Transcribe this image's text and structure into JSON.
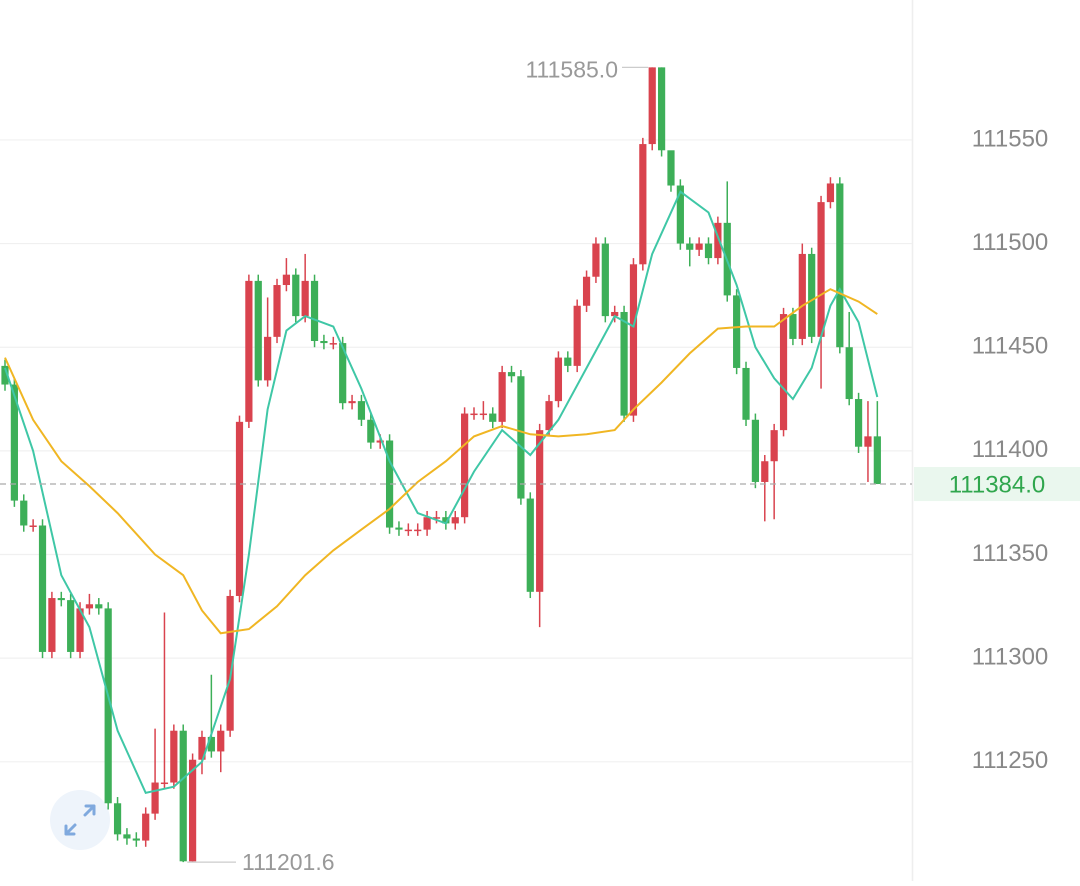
{
  "chart_data": {
    "type": "candlestick",
    "up_color": "#d9434e",
    "down_color": "#3daf58",
    "ylim": [
      111192.5,
      111617.5
    ],
    "yticks": [
      111250,
      111300,
      111350,
      111400,
      111450,
      111500,
      111550
    ],
    "grid": true,
    "open": [
      111441,
      111432,
      111376,
      111364,
      111364,
      111303,
      111329,
      111328,
      111303,
      111324,
      111326,
      111324,
      111230,
      111215,
      111213,
      111212,
      111225,
      111240,
      111240,
      111265,
      111202,
      111251,
      111262,
      111255,
      111265,
      111330,
      111414,
      111482,
      111434,
      111455,
      111480,
      111485,
      111465,
      111482,
      111453,
      111452,
      111452,
      111423,
      111424,
      111415,
      111404,
      111405,
      111363,
      111362,
      111362,
      111362,
      111368,
      111368,
      111365,
      111368,
      111418,
      111418,
      111418,
      111414,
      111438,
      111436,
      111377,
      111332,
      111410,
      111424,
      111445,
      111441,
      111470,
      111484,
      111500,
      111465,
      111467,
      111417,
      111490,
      111548,
      111585,
      111545,
      111528,
      111500,
      111497,
      111500,
      111493,
      111510,
      111475,
      111440,
      111415,
      111385,
      111395,
      111410,
      111466,
      111454,
      111495,
      111455,
      111520,
      111529,
      111450,
      111425,
      111402,
      111407
    ],
    "high": [
      111444,
      111435,
      111379,
      111367,
      111367,
      111332,
      111332,
      111331,
      111327,
      111331,
      111329,
      111327,
      111233,
      111218,
      111216,
      111228,
      111266,
      111322,
      111268,
      111268,
      111254,
      111265,
      111292,
      111268,
      111333,
      111417,
      111485,
      111485,
      111474,
      111483,
      111493,
      111488,
      111495,
      111485,
      111456,
      111455,
      111455,
      111427,
      111427,
      111418,
      111408,
      111408,
      111366,
      111365,
      111365,
      111371,
      111371,
      111371,
      111371,
      111421,
      111421,
      111424,
      111421,
      111441,
      111441,
      111439,
      111380,
      111413,
      111427,
      111448,
      111448,
      111473,
      111487,
      111503,
      111503,
      111470,
      111470,
      111493,
      111551,
      111585,
      111585,
      111541,
      111531,
      111503,
      111503,
      111503,
      111513,
      111530,
      111478,
      111443,
      111418,
      111398,
      111413,
      111469,
      111469,
      111500,
      111498,
      111523,
      111532,
      111532,
      111467,
      111428,
      111424,
      111424
    ],
    "low": [
      111429,
      111373,
      111361,
      111361,
      111300,
      111300,
      111325,
      111300,
      111300,
      111321,
      111321,
      111227,
      111212,
      111210,
      111209,
      111209,
      111222,
      111237,
      111237,
      111201.6,
      111202,
      111244,
      111252,
      111245,
      111262,
      111327,
      111411,
      111431,
      111431,
      111452,
      111477,
      111462,
      111462,
      111450,
      111449,
      111449,
      111420,
      111420,
      111412,
      111401,
      111401,
      111360,
      111359,
      111359,
      111359,
      111359,
      111365,
      111362,
      111362,
      111365,
      111415,
      111415,
      111411,
      111411,
      111433,
      111374,
      111329,
      111315,
      111407,
      111421,
      111438,
      111438,
      111467,
      111481,
      111462,
      111462,
      111414,
      111414,
      111487,
      111545,
      111542,
      111525,
      111497,
      111489,
      111494,
      111490,
      111490,
      111472,
      111437,
      111412,
      111382,
      111366,
      111367,
      111407,
      111451,
      111451,
      111452,
      111430,
      111517,
      111447,
      111422,
      111399,
      111385,
      111384
    ],
    "close": [
      111432,
      111376,
      111364,
      111364,
      111303,
      111329,
      111328,
      111303,
      111324,
      111326,
      111324,
      111230,
      111215,
      111213,
      111212,
      111225,
      111240,
      111240,
      111265,
      111202,
      111251,
      111262,
      111255,
      111265,
      111330,
      111414,
      111482,
      111434,
      111455,
      111480,
      111485,
      111465,
      111482,
      111453,
      111452,
      111452,
      111423,
      111424,
      111415,
      111404,
      111405,
      111363,
      111362,
      111362,
      111362,
      111368,
      111368,
      111365,
      111368,
      111418,
      111418,
      111418,
      111414,
      111438,
      111436,
      111377,
      111332,
      111410,
      111424,
      111445,
      111441,
      111470,
      111484,
      111500,
      111465,
      111467,
      111417,
      111490,
      111548,
      111585,
      111545,
      111528,
      111500,
      111497,
      111500,
      111493,
      111510,
      111475,
      111440,
      111415,
      111385,
      111395,
      111410,
      111466,
      111454,
      111495,
      111455,
      111520,
      111529,
      111450,
      111425,
      111402,
      111407,
      111384
    ],
    "lines": [
      {
        "color": "#3fc7a6",
        "x": [
          0,
          3,
          6,
          9,
          12,
          15,
          18,
          21,
          24,
          26,
          28,
          30,
          32,
          35,
          38,
          41,
          44,
          47,
          50,
          53,
          56,
          59,
          62,
          65,
          67,
          69,
          72,
          75,
          78,
          80,
          82,
          84,
          86,
          88,
          89,
          91,
          93
        ],
        "values": [
          111440,
          111400,
          111340,
          111315,
          111265,
          111235,
          111238,
          111250,
          111290,
          111350,
          111420,
          111458,
          111465,
          111460,
          111430,
          111395,
          111370,
          111365,
          111390,
          111410,
          111398,
          111415,
          111440,
          111465,
          111460,
          111495,
          111525,
          111515,
          111480,
          111450,
          111435,
          111425,
          111440,
          111470,
          111478,
          111462,
          111426
        ]
      },
      {
        "color": "#f0b623",
        "x": [
          0,
          3,
          6,
          9,
          12,
          16,
          19,
          21,
          23,
          26,
          29,
          32,
          35,
          38,
          41,
          44,
          47,
          50,
          53,
          56,
          59,
          62,
          65,
          67,
          70,
          73,
          76,
          79,
          82,
          85,
          88,
          91,
          93
        ],
        "values": [
          111445,
          111415,
          111395,
          111383,
          111370,
          111350,
          111340,
          111323,
          111312,
          111314,
          111325,
          111340,
          111352,
          111362,
          111372,
          111385,
          111395,
          111407,
          111412,
          111408,
          111407,
          111408,
          111410,
          111420,
          111433,
          111447,
          111459,
          111460,
          111460,
          111470,
          111478,
          111472,
          111466
        ]
      }
    ],
    "max_label": {
      "value": 111585,
      "label": "111585.0"
    },
    "min_label": {
      "value": 111201.6,
      "label": "111201.6"
    },
    "last_price": {
      "value": 111384,
      "label": "111384.0"
    }
  }
}
